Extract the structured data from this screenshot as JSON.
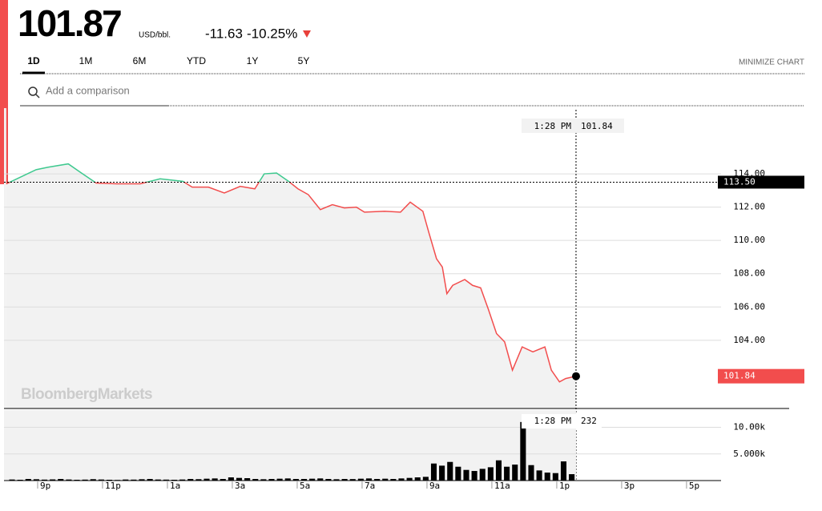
{
  "header": {
    "price": "101.87",
    "unit": "USD/bbl.",
    "change": "-11.63",
    "change_pct": "-10.25%"
  },
  "tabs": [
    "1D",
    "1M",
    "6M",
    "YTD",
    "1Y",
    "5Y"
  ],
  "minimize": "MINIMIZE CHART",
  "search_placeholder": "Add a comparison",
  "watermark": "BloombergMarkets",
  "chart_data": {
    "type": "line",
    "x": [
      19.91,
      20.83,
      21.2,
      21.82,
      22.19,
      22.68,
      23.3,
      24.04,
      24.65,
      25.35,
      25.64,
      26.14,
      26.63,
      27.12,
      27.57,
      27.86,
      28.24,
      28.61,
      28.9,
      29.22,
      29.59,
      29.96,
      30.33,
      30.7,
      30.95,
      31.57,
      32.06,
      32.36,
      32.75,
      32.93,
      33.17,
      33.35,
      33.49,
      33.67,
      34.04,
      34.28,
      34.53,
      34.77,
      35.02,
      35.27,
      35.51,
      35.81,
      36.14,
      36.51,
      36.71,
      36.96,
      37.15,
      37.47
    ],
    "series": [
      {
        "name": "Price",
        "values": [
          113.4,
          114.25,
          114.4,
          114.6,
          114.1,
          113.45,
          113.4,
          113.4,
          113.7,
          113.55,
          113.2,
          113.2,
          112.85,
          113.25,
          113.1,
          114.0,
          114.05,
          113.55,
          113.1,
          112.75,
          111.85,
          112.15,
          111.95,
          112.0,
          111.7,
          111.75,
          111.7,
          112.3,
          111.75,
          110.5,
          108.9,
          108.4,
          106.8,
          107.3,
          107.65,
          107.3,
          107.15,
          105.85,
          104.4,
          103.9,
          102.2,
          103.6,
          103.3,
          103.6,
          102.2,
          101.5,
          101.7,
          101.84
        ]
      }
    ],
    "colors": {
      "up": "#3ec98f",
      "down": "#f24d4d"
    },
    "xlim": [
      19.84,
      41.94
    ],
    "xticks": [
      {
        "value": 21,
        "label": "9p"
      },
      {
        "value": 23,
        "label": "11p"
      },
      {
        "value": 25,
        "label": "1a"
      },
      {
        "value": 27,
        "label": "3a"
      },
      {
        "value": 29,
        "label": "5a"
      },
      {
        "value": 31,
        "label": "7a"
      },
      {
        "value": 33,
        "label": "9a"
      },
      {
        "value": 35,
        "label": "11a"
      },
      {
        "value": 37,
        "label": "1p"
      },
      {
        "value": 39,
        "label": "3p"
      },
      {
        "value": 41,
        "label": "5p"
      }
    ],
    "ylim": [
      99.9,
      117.95
    ],
    "yticks": [
      {
        "value": 104,
        "label": "104.00"
      },
      {
        "value": 106,
        "label": "106.00"
      },
      {
        "value": 108,
        "label": "108.00"
      },
      {
        "value": 110,
        "label": "110.00"
      },
      {
        "value": 112,
        "label": "112.00"
      },
      {
        "value": 114,
        "label": "114.00"
      }
    ],
    "grid": true,
    "reference": {
      "value": 113.5,
      "label": "113.50"
    },
    "last": 101.84,
    "crosshair": {
      "time": "1:28 PM",
      "x": 37.47,
      "value": 101.84,
      "volume": 232
    },
    "volume": {
      "x": [
        20,
        20.25,
        20.5,
        20.75,
        21,
        21.25,
        21.5,
        21.75,
        22,
        22.25,
        22.5,
        22.75,
        23,
        23.25,
        23.5,
        23.75,
        24,
        24.25,
        24.5,
        24.75,
        25,
        25.25,
        25.5,
        25.75,
        26,
        26.25,
        26.5,
        26.75,
        27,
        27.25,
        27.5,
        27.75,
        28,
        28.25,
        28.5,
        28.75,
        29,
        29.25,
        29.5,
        29.75,
        30,
        30.25,
        30.5,
        30.75,
        31,
        31.25,
        31.5,
        31.75,
        32,
        32.25,
        32.5,
        32.75,
        33,
        33.25,
        33.5,
        33.75,
        34,
        34.25,
        34.5,
        34.75,
        35,
        35.25,
        35.5,
        35.75,
        36,
        36.25,
        36.5,
        36.75,
        37,
        37.25
      ],
      "values": [
        200,
        150,
        300,
        250,
        180,
        220,
        300,
        200,
        150,
        180,
        260,
        200,
        150,
        120,
        200,
        180,
        250,
        300,
        200,
        180,
        150,
        200,
        300,
        260,
        350,
        400,
        300,
        600,
        500,
        450,
        300,
        250,
        300,
        350,
        400,
        300,
        300,
        350,
        400,
        300,
        250,
        300,
        280,
        350,
        400,
        300,
        350,
        300,
        400,
        500,
        600,
        700,
        3200,
        2800,
        3500,
        2600,
        2000,
        1800,
        2200,
        2500,
        3800,
        2600,
        3000,
        11000,
        2900,
        1900,
        1500,
        1400,
        3600,
        1200
      ],
      "ylim": [
        0,
        13235
      ],
      "yticks": [
        {
          "value": 5000,
          "label": "5.000k"
        },
        {
          "value": 10000,
          "label": "10.00k"
        }
      ]
    }
  }
}
